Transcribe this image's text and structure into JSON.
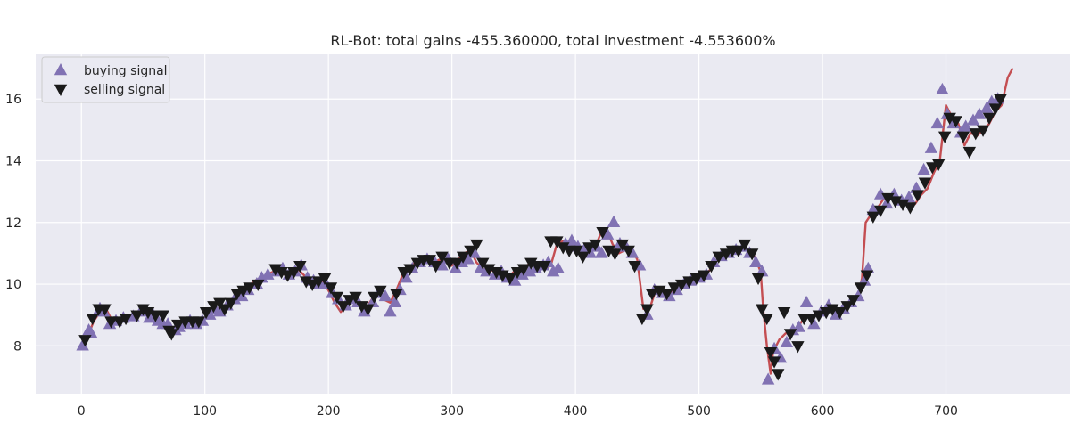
{
  "chart_data": {
    "type": "line",
    "title": "RL-Bot: total gains -455.360000, total investment -4.553600%",
    "xlabel": "",
    "ylabel": "",
    "xlim": [
      -37,
      800
    ],
    "ylim": [
      6.45,
      17.45
    ],
    "xticks": [
      0,
      100,
      200,
      300,
      400,
      500,
      600,
      700
    ],
    "yticks": [
      8,
      10,
      12,
      14,
      16
    ],
    "grid": true,
    "legend_position": "top-left",
    "colors": {
      "background": "#EAEAF2",
      "grid": "#FFFFFF",
      "price_line": "#C44E52",
      "buy_marker": "#8172B3",
      "sell_marker": "#1A1A1A"
    },
    "series": [
      {
        "kind": "line",
        "x": [
          0,
          5,
          10,
          15,
          20,
          25,
          30,
          35,
          40,
          45,
          50,
          55,
          60,
          65,
          70,
          75,
          80,
          85,
          90,
          95,
          100,
          105,
          110,
          115,
          120,
          125,
          130,
          135,
          140,
          145,
          150,
          155,
          160,
          165,
          170,
          175,
          180,
          185,
          190,
          195,
          200,
          205,
          210,
          215,
          220,
          225,
          230,
          235,
          240,
          245,
          250,
          255,
          260,
          265,
          270,
          275,
          280,
          285,
          290,
          295,
          300,
          305,
          310,
          315,
          320,
          325,
          330,
          335,
          340,
          345,
          350,
          355,
          360,
          365,
          370,
          375,
          380,
          385,
          390,
          395,
          400,
          405,
          410,
          415,
          420,
          425,
          430,
          435,
          440,
          445,
          450,
          455,
          460,
          465,
          470,
          475,
          480,
          485,
          490,
          495,
          500,
          505,
          510,
          515,
          520,
          525,
          530,
          535,
          540,
          545,
          550,
          552,
          555,
          558,
          560,
          565,
          570,
          575,
          580,
          585,
          590,
          595,
          600,
          605,
          610,
          615,
          620,
          625,
          630,
          632,
          635,
          640,
          645,
          650,
          655,
          660,
          665,
          670,
          675,
          680,
          685,
          690,
          695,
          700,
          705,
          710,
          715,
          720,
          725,
          730,
          735,
          740,
          745,
          750,
          754
        ],
        "values": [
          8.0,
          8.3,
          8.8,
          9.1,
          9.2,
          8.8,
          8.9,
          8.9,
          9.0,
          9.0,
          9.1,
          9.0,
          8.9,
          8.8,
          8.6,
          8.4,
          8.6,
          8.8,
          8.7,
          8.8,
          8.9,
          9.1,
          9.2,
          9.3,
          9.3,
          9.5,
          9.7,
          9.9,
          10.1,
          10.2,
          10.3,
          10.4,
          10.4,
          10.3,
          10.4,
          10.5,
          10.3,
          10.1,
          10.2,
          10.1,
          9.8,
          9.4,
          9.1,
          9.3,
          9.5,
          9.4,
          9.2,
          9.5,
          9.7,
          9.5,
          9.4,
          9.8,
          10.3,
          10.5,
          10.7,
          10.8,
          10.8,
          10.7,
          10.8,
          10.7,
          10.6,
          10.8,
          11.0,
          11.1,
          10.7,
          10.5,
          10.4,
          10.5,
          10.3,
          10.2,
          10.4,
          10.5,
          10.6,
          10.7,
          10.7,
          10.5,
          10.6,
          11.3,
          11.4,
          11.2,
          11.1,
          11.0,
          11.2,
          11.1,
          11.6,
          11.8,
          11.3,
          11.0,
          11.1,
          11.2,
          10.8,
          9.2,
          9.2,
          9.8,
          9.8,
          9.7,
          9.8,
          9.9,
          9.9,
          10.1,
          10.3,
          10.3,
          10.5,
          10.8,
          11.0,
          11.1,
          11.1,
          11.2,
          11.1,
          10.9,
          10.4,
          9.2,
          8.0,
          7.1,
          7.8,
          8.2,
          8.4,
          8.5,
          8.6,
          8.9,
          9.0,
          9.0,
          9.0,
          9.1,
          9.2,
          9.2,
          9.3,
          9.5,
          9.8,
          10.2,
          12.0,
          12.3,
          12.5,
          12.8,
          12.9,
          12.8,
          12.7,
          12.8,
          12.6,
          12.9,
          13.1,
          13.6,
          14.0,
          15.8,
          15.4,
          15.2,
          14.5,
          14.9,
          14.8,
          15.0,
          15.2,
          15.6,
          15.8,
          16.7,
          17.0
        ]
      },
      {
        "kind": "buy",
        "name": "buying signal",
        "x": [
          1,
          6,
          8,
          15,
          18,
          23,
          28,
          34,
          42,
          48,
          55,
          58,
          62,
          66,
          70,
          76,
          79,
          84,
          88,
          93,
          98,
          104,
          108,
          112,
          118,
          124,
          130,
          135,
          142,
          146,
          151,
          158,
          163,
          168,
          173,
          178,
          183,
          188,
          193,
          198,
          203,
          208,
          214,
          219,
          224,
          229,
          236,
          241,
          246,
          250,
          254,
          258,
          263,
          268,
          274,
          280,
          286,
          292,
          297,
          303,
          308,
          313,
          318,
          323,
          328,
          335,
          340,
          345,
          351,
          357,
          363,
          368,
          374,
          378,
          382,
          386,
          392,
          397,
          402,
          407,
          412,
          417,
          421,
          426,
          431,
          436,
          441,
          446,
          452,
          458,
          464,
          470,
          476,
          482,
          488,
          493,
          500,
          506,
          512,
          518,
          524,
          530,
          536,
          541,
          546,
          551,
          556,
          561,
          566,
          571,
          576,
          581,
          587,
          593,
          599,
          605,
          611,
          617,
          623,
          629,
          634,
          637,
          641,
          647,
          652,
          658,
          664,
          670,
          676,
          682,
          688,
          693,
          697,
          701,
          706,
          712,
          716,
          722,
          727,
          733,
          737,
          742
        ],
        "values": [
          8.0,
          8.5,
          8.4,
          9.2,
          9.1,
          8.7,
          8.8,
          8.9,
          8.95,
          9.1,
          8.9,
          9.0,
          8.8,
          8.7,
          8.7,
          8.5,
          8.6,
          8.7,
          8.8,
          8.7,
          8.8,
          9.0,
          9.2,
          9.1,
          9.3,
          9.5,
          9.6,
          9.8,
          10.0,
          10.2,
          10.3,
          10.4,
          10.5,
          10.3,
          10.4,
          10.6,
          10.2,
          10.1,
          10.0,
          10.0,
          9.7,
          9.5,
          9.3,
          9.5,
          9.4,
          9.1,
          9.4,
          9.7,
          9.6,
          9.1,
          9.4,
          9.8,
          10.2,
          10.5,
          10.7,
          10.8,
          10.7,
          10.6,
          10.8,
          10.5,
          10.7,
          10.8,
          11.0,
          10.5,
          10.4,
          10.3,
          10.4,
          10.2,
          10.1,
          10.3,
          10.4,
          10.5,
          10.6,
          10.7,
          10.4,
          10.5,
          11.3,
          11.4,
          11.2,
          11.1,
          11.0,
          11.2,
          11.0,
          11.6,
          12.0,
          11.3,
          11.2,
          11.0,
          10.6,
          9.0,
          9.8,
          9.7,
          9.6,
          9.8,
          10.0,
          10.1,
          10.2,
          10.3,
          10.7,
          10.9,
          11.0,
          11.1,
          11.2,
          11.0,
          10.7,
          10.4,
          6.9,
          7.9,
          7.6,
          8.1,
          8.5,
          8.6,
          9.4,
          8.7,
          9.1,
          9.3,
          9.0,
          9.2,
          9.4,
          9.6,
          10.1,
          10.5,
          12.4,
          12.9,
          12.6,
          12.9,
          12.7,
          12.8,
          13.1,
          13.7,
          14.4,
          15.2,
          16.3,
          15.5,
          15.2,
          14.9,
          15.1,
          15.3,
          15.5,
          15.7,
          15.9,
          16.0
        ],
        "color": "#8172B3"
      },
      {
        "kind": "sell",
        "name": "selling signal",
        "x": [
          3,
          9,
          14,
          19,
          24,
          31,
          36,
          45,
          50,
          54,
          60,
          66,
          71,
          73,
          78,
          84,
          90,
          95,
          101,
          107,
          112,
          116,
          121,
          126,
          131,
          136,
          143,
          157,
          162,
          167,
          172,
          177,
          182,
          187,
          192,
          197,
          202,
          207,
          212,
          217,
          222,
          227,
          232,
          237,
          242,
          255,
          261,
          266,
          272,
          277,
          282,
          287,
          292,
          298,
          304,
          309,
          315,
          320,
          325,
          330,
          336,
          341,
          347,
          353,
          358,
          364,
          369,
          375,
          380,
          385,
          390,
          395,
          401,
          406,
          411,
          416,
          422,
          427,
          432,
          438,
          443,
          448,
          454,
          458,
          462,
          468,
          474,
          480,
          486,
          492,
          498,
          504,
          510,
          516,
          522,
          527,
          532,
          537,
          543,
          548,
          551,
          555,
          558,
          561,
          564,
          569,
          574,
          580,
          585,
          591,
          597,
          603,
          608,
          614,
          620,
          625,
          631,
          636,
          641,
          647,
          653,
          659,
          665,
          671,
          677,
          683,
          689,
          694,
          699,
          703,
          708,
          714,
          719,
          724,
          730,
          735,
          740,
          744
        ],
        "values": [
          8.2,
          8.9,
          9.2,
          9.2,
          8.8,
          8.8,
          8.9,
          9.0,
          9.2,
          9.1,
          9.0,
          9.0,
          8.5,
          8.4,
          8.7,
          8.8,
          8.8,
          8.8,
          9.1,
          9.3,
          9.4,
          9.2,
          9.4,
          9.7,
          9.8,
          9.9,
          10.0,
          10.5,
          10.4,
          10.3,
          10.4,
          10.6,
          10.1,
          10.0,
          10.1,
          10.2,
          9.9,
          9.6,
          9.3,
          9.5,
          9.6,
          9.3,
          9.2,
          9.6,
          9.8,
          9.7,
          10.4,
          10.5,
          10.7,
          10.8,
          10.8,
          10.6,
          10.9,
          10.7,
          10.7,
          10.9,
          11.1,
          11.3,
          10.7,
          10.5,
          10.4,
          10.3,
          10.2,
          10.4,
          10.5,
          10.7,
          10.6,
          10.6,
          11.4,
          11.4,
          11.2,
          11.1,
          11.1,
          10.9,
          11.2,
          11.3,
          11.7,
          11.1,
          11.0,
          11.3,
          11.1,
          10.6,
          8.9,
          9.2,
          9.7,
          9.8,
          9.7,
          9.9,
          10.0,
          10.1,
          10.2,
          10.3,
          10.6,
          10.9,
          11.0,
          11.1,
          11.1,
          11.3,
          11.0,
          10.2,
          9.2,
          8.9,
          7.8,
          7.5,
          7.1,
          9.1,
          8.4,
          8.0,
          8.9,
          8.9,
          9.0,
          9.1,
          9.2,
          9.1,
          9.3,
          9.5,
          9.9,
          10.3,
          12.2,
          12.4,
          12.8,
          12.7,
          12.6,
          12.5,
          12.9,
          13.3,
          13.8,
          13.9,
          14.8,
          15.4,
          15.3,
          14.8,
          14.3,
          14.9,
          15.0,
          15.4,
          15.7,
          16.0
        ]
      }
    ]
  }
}
